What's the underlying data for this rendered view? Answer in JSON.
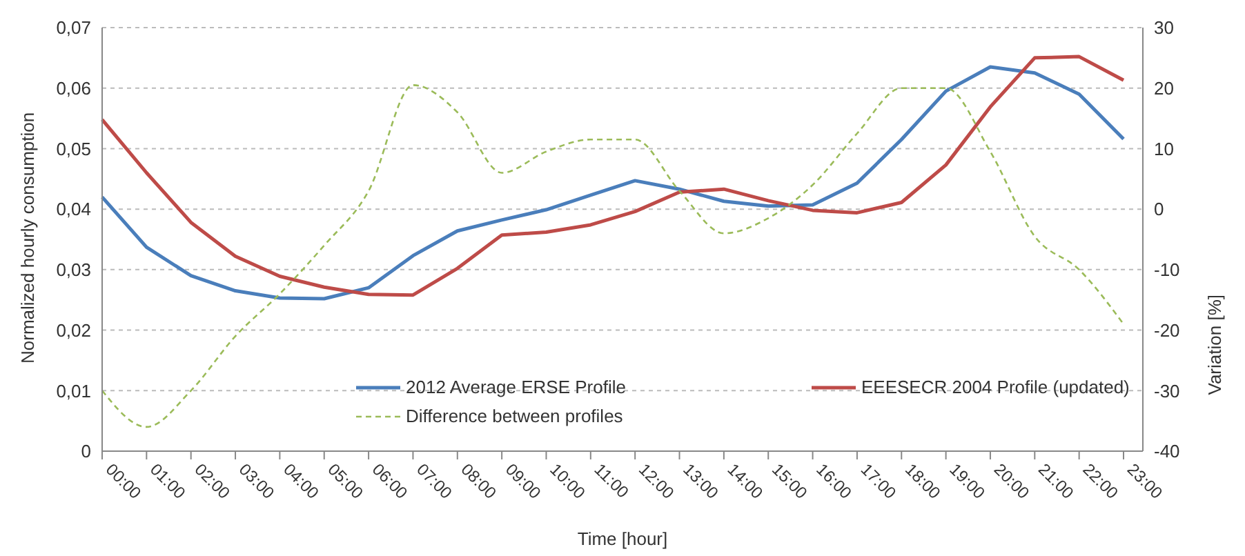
{
  "chart_data": {
    "type": "line",
    "xlabel": "Time [hour]",
    "ylabel": "Normalized hourly consumption",
    "y2label": "Variation [%]",
    "categories": [
      "00:00",
      "01:00",
      "02:00",
      "03:00",
      "04:00",
      "05:00",
      "06:00",
      "07:00",
      "08:00",
      "09:00",
      "10:00",
      "11:00",
      "12:00",
      "13:00",
      "14:00",
      "15:00",
      "16:00",
      "17:00",
      "18:00",
      "19:00",
      "20:00",
      "21:00",
      "22:00",
      "23:00"
    ],
    "series": [
      {
        "name": "2012 Average ERSE Profile",
        "color": "#4a7ebb",
        "line_style": "solid",
        "values": [
          0.042,
          0.0337,
          0.029,
          0.0265,
          0.0253,
          0.0252,
          0.027,
          0.0323,
          0.0364,
          0.0382,
          0.0399,
          0.0423,
          0.0447,
          0.0433,
          0.0413,
          0.0405,
          0.0407,
          0.0443,
          0.0515,
          0.0595,
          0.0635,
          0.0625,
          0.059,
          0.0516
        ]
      },
      {
        "name": "EEESECR 2004 Profile (updated)",
        "color": "#be4b48",
        "line_style": "solid",
        "values": [
          0.0548,
          0.046,
          0.0378,
          0.0322,
          0.0289,
          0.0271,
          0.0259,
          0.0258,
          0.0302,
          0.0357,
          0.0362,
          0.0374,
          0.0396,
          0.0428,
          0.0433,
          0.0414,
          0.0398,
          0.0394,
          0.0411,
          0.0473,
          0.0569,
          0.065,
          0.0652,
          0.0613
        ]
      },
      {
        "name": "Difference between profiles",
        "color": "#9bbb59",
        "line_style": "dashed",
        "axis": "y2",
        "values": [
          -30,
          -36,
          -30,
          -21,
          -14,
          -6,
          3,
          20.5,
          16,
          6,
          9.5,
          11.5,
          11.5,
          3,
          -4,
          -1.5,
          4,
          12.5,
          20,
          20,
          9.5,
          -4.5,
          -10,
          -19
        ]
      }
    ],
    "ylim": [
      0,
      0.07
    ],
    "yticks": [
      {
        "value": 0,
        "label": "0"
      },
      {
        "value": 0.01,
        "label": "0,01"
      },
      {
        "value": 0.02,
        "label": "0,02"
      },
      {
        "value": 0.03,
        "label": "0,03"
      },
      {
        "value": 0.04,
        "label": "0,04"
      },
      {
        "value": 0.05,
        "label": "0,05"
      },
      {
        "value": 0.06,
        "label": "0,06"
      },
      {
        "value": 0.07,
        "label": "0,07"
      }
    ],
    "y2lim": [
      -40,
      30
    ],
    "y2ticks": [
      -40,
      -30,
      -20,
      -10,
      0,
      10,
      20,
      30
    ],
    "grid": "y",
    "legend": "bottom",
    "marker": "none"
  }
}
